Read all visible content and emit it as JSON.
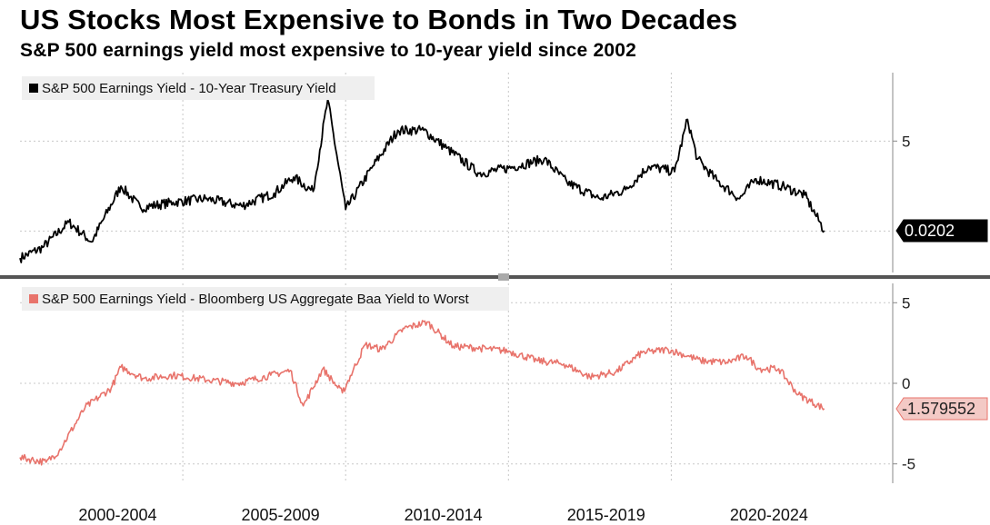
{
  "title": "US Stocks Most Expensive to Bonds in Two Decades",
  "subtitle": "S&P 500 earnings yield most expensive to 10-year yield since 2002",
  "chart_data": [
    {
      "type": "line",
      "name": "top-panel",
      "legend": "S&P 500 Earnings Yield - 10-Year Treasury Yield",
      "color": "#000000",
      "ylim": [
        -2.3,
        8.8
      ],
      "yticks": [
        5
      ],
      "gridlines": [
        0,
        5
      ],
      "last_value_label": "0.0202",
      "last_value": 0.02,
      "x": [
        1999.5,
        2000.2,
        2001.0,
        2001.7,
        2002.6,
        2003.2,
        2004.2,
        2005.2,
        2006.3,
        2007.3,
        2007.9,
        2008.5,
        2008.95,
        2009.5,
        2010.3,
        2011.1,
        2011.9,
        2012.6,
        2013.6,
        2014.5,
        2015.6,
        2016.3,
        2017.3,
        2018.1,
        2018.8,
        2019.6,
        2020.0,
        2020.3,
        2020.9,
        2021.6,
        2022.1,
        2022.9,
        2023.6,
        2024.2
      ],
      "y": [
        -1.5,
        -0.9,
        0.5,
        -0.6,
        2.5,
        1.3,
        1.6,
        1.8,
        1.4,
        2.1,
        3.0,
        2.2,
        7.3,
        1.2,
        3.5,
        5.6,
        5.6,
        4.6,
        3.2,
        3.5,
        4.0,
        2.7,
        1.8,
        2.3,
        3.6,
        3.3,
        6.2,
        4.0,
        2.8,
        1.8,
        2.9,
        2.5,
        2.0,
        0.02
      ]
    },
    {
      "type": "line",
      "name": "bottom-panel",
      "legend": "S&P 500 Earnings Yield - Bloomberg US Aggregate Baa Yield to Worst",
      "color": "#e8736b",
      "ylim": [
        -6.2,
        6.2
      ],
      "yticks": [
        5,
        0,
        -5
      ],
      "gridlines": [
        5,
        0,
        -5
      ],
      "last_value_label": "-1.579552",
      "last_value": -1.58,
      "x": [
        1999.5,
        2000.3,
        2000.7,
        2001.5,
        2002.3,
        2002.6,
        2003.3,
        2004.2,
        2005.3,
        2006.2,
        2007.2,
        2007.8,
        2008.2,
        2008.8,
        2009.4,
        2010.1,
        2010.6,
        2011.3,
        2012.0,
        2012.8,
        2013.5,
        2014.5,
        2015.4,
        2016.2,
        2017.0,
        2017.8,
        2018.6,
        2019.4,
        2020.0,
        2020.4,
        2021.2,
        2021.8,
        2022.2,
        2022.8,
        2023.4,
        2024.2
      ],
      "y": [
        -4.6,
        -4.9,
        -4.2,
        -1.5,
        -0.3,
        1.0,
        0.3,
        0.5,
        0.2,
        0.0,
        0.5,
        0.8,
        -1.4,
        0.9,
        -0.6,
        2.4,
        2.1,
        3.4,
        3.8,
        2.3,
        2.2,
        2.0,
        1.4,
        1.2,
        0.4,
        0.7,
        1.9,
        2.1,
        1.7,
        1.4,
        1.3,
        1.7,
        0.9,
        0.9,
        -0.7,
        -1.58
      ]
    }
  ],
  "x_axis": {
    "range": [
      1999.5,
      2026.3
    ],
    "labels": [
      {
        "label": "2000-2004",
        "center": 2002.5
      },
      {
        "label": "2005-2009",
        "center": 2007.5
      },
      {
        "label": "2010-2014",
        "center": 2012.5
      },
      {
        "label": "2015-2019",
        "center": 2017.5
      },
      {
        "label": "2020-2024",
        "center": 2022.5
      }
    ],
    "gridlines": [
      2004.5,
      2009.5,
      2014.5,
      2019.5
    ]
  }
}
